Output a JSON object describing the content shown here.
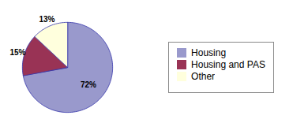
{
  "chart_data": {
    "type": "pie",
    "categories": [
      "Housing",
      "Housing and PAS",
      "Other"
    ],
    "values": [
      72,
      15,
      13
    ],
    "value_labels": [
      "72%",
      "15%",
      "13%"
    ],
    "colors": [
      "#9999cc",
      "#993355",
      "#ffffdd"
    ],
    "data_labels": true,
    "legend": "right"
  }
}
